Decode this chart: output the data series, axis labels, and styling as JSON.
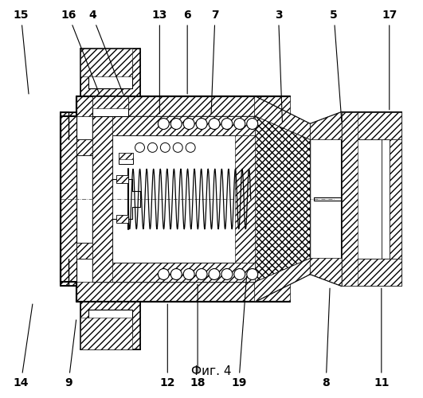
{
  "title": "Фиг. 4",
  "bg": "#ffffff",
  "lc": "#000000",
  "fig_width": 5.31,
  "fig_height": 5.0,
  "dpi": 100,
  "label_fs": 10,
  "cap_fs": 11
}
